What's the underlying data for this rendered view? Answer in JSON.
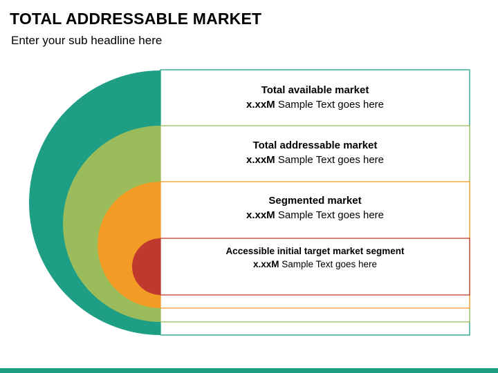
{
  "title": "TOTAL ADDRESSABLE MARKET",
  "subtitle": "Enter your sub headline here",
  "colors": {
    "teal": "#1e9e85",
    "green": "#9bbc5b",
    "orange": "#f29b25",
    "red": "#c0392f",
    "bar": "#1e9e85"
  },
  "segments": [
    {
      "label": "Total available market",
      "value_bold": "x.xxM",
      "value_text": " Sample Text goes here"
    },
    {
      "label": "Total addressable market",
      "value_bold": "x.xxM",
      "value_text": " Sample Text goes here"
    },
    {
      "label": "Segmented market",
      "value_bold": "x.xxM",
      "value_text": " Sample Text goes here"
    },
    {
      "label": "Accessible initial target market segment",
      "value_bold": "x.xxM",
      "value_text": " Sample Text goes here"
    }
  ]
}
